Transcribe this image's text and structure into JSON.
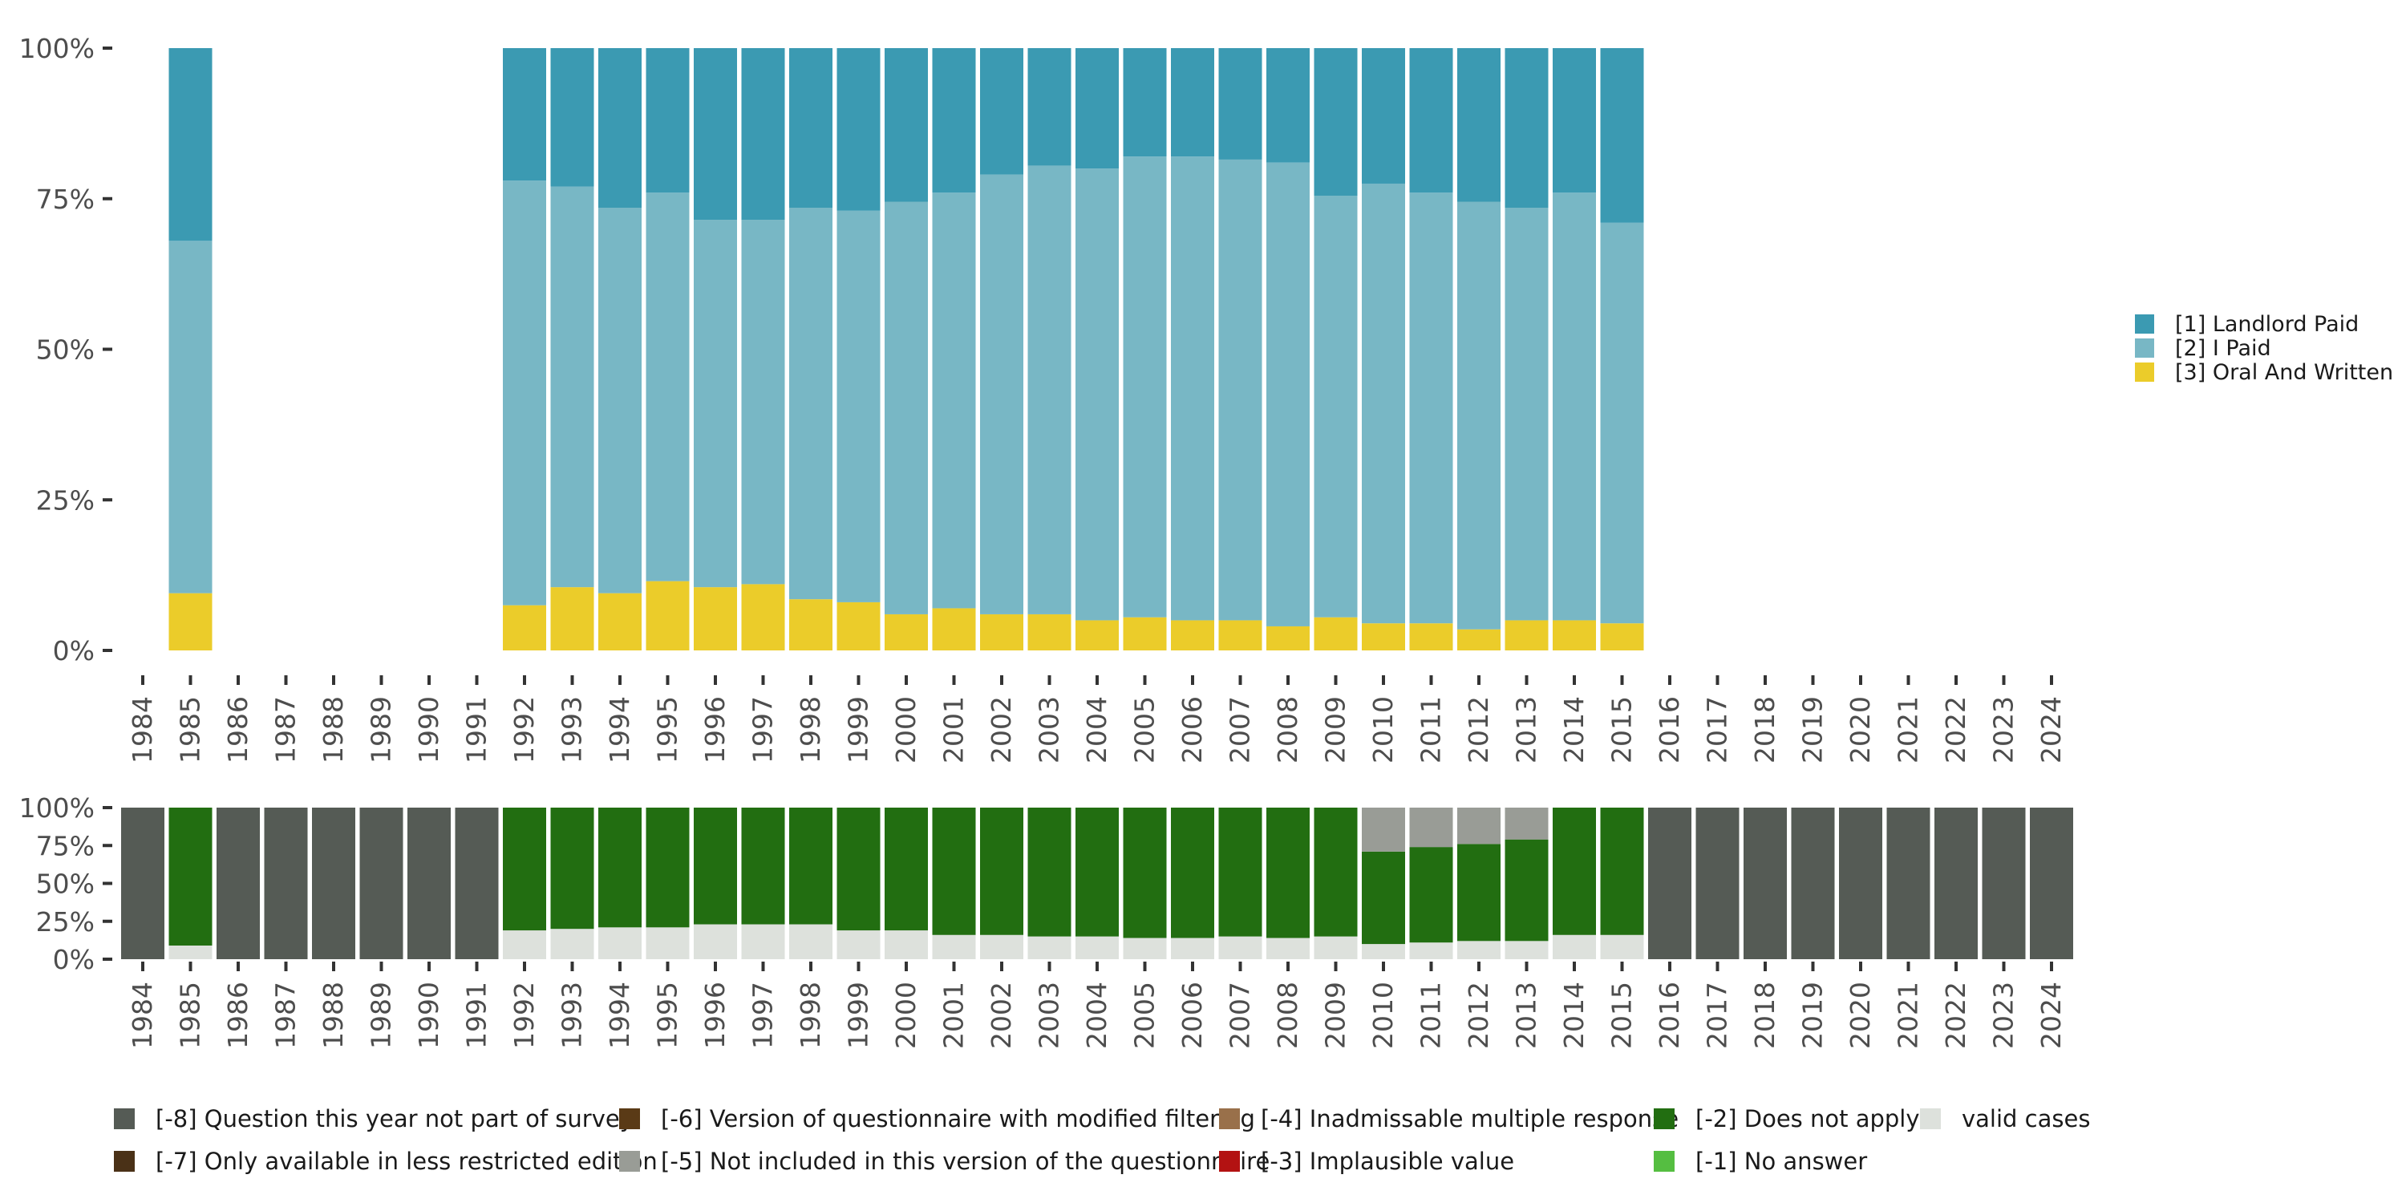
{
  "chart_data": [
    {
      "type": "bar",
      "stacked": true,
      "normalized": true,
      "title": "",
      "xlabel": "",
      "ylabel": "",
      "ylim": [
        0,
        100
      ],
      "yticks": [
        "0%",
        "25%",
        "50%",
        "75%",
        "100%"
      ],
      "categories": [
        "1984",
        "1985",
        "1986",
        "1987",
        "1988",
        "1989",
        "1990",
        "1991",
        "1992",
        "1993",
        "1994",
        "1995",
        "1996",
        "1997",
        "1998",
        "1999",
        "2000",
        "2001",
        "2002",
        "2003",
        "2004",
        "2005",
        "2006",
        "2007",
        "2008",
        "2009",
        "2010",
        "2011",
        "2012",
        "2013",
        "2014",
        "2015",
        "2016",
        "2017",
        "2018",
        "2019",
        "2020",
        "2021",
        "2022",
        "2023",
        "2024"
      ],
      "series": [
        {
          "name": "[3] Oral And Written",
          "color": "#ebcc2a",
          "values": [
            null,
            9.5,
            null,
            null,
            null,
            null,
            null,
            null,
            7.5,
            10.5,
            9.5,
            11.5,
            10.5,
            11,
            8.5,
            8,
            6,
            7,
            6,
            6,
            5,
            5.5,
            5,
            5,
            4,
            5.5,
            4.5,
            4.5,
            3.5,
            5,
            5,
            4.5,
            null,
            null,
            null,
            null,
            null,
            null,
            null,
            null,
            null
          ]
        },
        {
          "name": "[2] I Paid",
          "color": "#78b7c5",
          "values": [
            null,
            58.5,
            null,
            null,
            null,
            null,
            null,
            null,
            70.5,
            66.5,
            64,
            64.5,
            61,
            60.5,
            65,
            65,
            68.5,
            69,
            73,
            74.5,
            75,
            76.5,
            77,
            76.5,
            77,
            70,
            73,
            71.5,
            71,
            68.5,
            71,
            66.5,
            null,
            null,
            null,
            null,
            null,
            null,
            null,
            null,
            null
          ]
        },
        {
          "name": "[1] Landlord Paid",
          "color": "#3b9ab2",
          "values": [
            null,
            32,
            null,
            null,
            null,
            null,
            null,
            null,
            22,
            23,
            26.5,
            24,
            28.5,
            28.5,
            26.5,
            27,
            25.5,
            24,
            21,
            19.5,
            20,
            18,
            18,
            18.5,
            19,
            24.5,
            22.5,
            24,
            25.5,
            26.5,
            24,
            29,
            null,
            null,
            null,
            null,
            null,
            null,
            null,
            null,
            null
          ]
        }
      ],
      "legend": [
        "[1] Landlord Paid",
        "[2] I Paid",
        "[3] Oral And Written"
      ],
      "legend_position": "right"
    },
    {
      "type": "bar",
      "stacked": true,
      "normalized": true,
      "ylim": [
        0,
        100
      ],
      "yticks": [
        "0%",
        "25%",
        "50%",
        "75%",
        "100%"
      ],
      "categories": [
        "1984",
        "1985",
        "1986",
        "1987",
        "1988",
        "1989",
        "1990",
        "1991",
        "1992",
        "1993",
        "1994",
        "1995",
        "1996",
        "1997",
        "1998",
        "1999",
        "2000",
        "2001",
        "2002",
        "2003",
        "2004",
        "2005",
        "2006",
        "2007",
        "2008",
        "2009",
        "2010",
        "2011",
        "2012",
        "2013",
        "2014",
        "2015",
        "2016",
        "2017",
        "2018",
        "2019",
        "2020",
        "2021",
        "2022",
        "2023",
        "2024"
      ],
      "series": [
        {
          "name": "valid cases",
          "color": "#dde1dc",
          "values": [
            0,
            9,
            0,
            0,
            0,
            0,
            0,
            0,
            19,
            20,
            21,
            21,
            23,
            23,
            23,
            19,
            19,
            16,
            16,
            15,
            15,
            14,
            14,
            15,
            14,
            15,
            10,
            11,
            12,
            12,
            16,
            16,
            0,
            0,
            0,
            0,
            0,
            0,
            0,
            0,
            0
          ]
        },
        {
          "name": "[-2] Does not apply",
          "color": "#226e11",
          "values": [
            0,
            91,
            0,
            0,
            0,
            0,
            0,
            0,
            81,
            80,
            79,
            79,
            77,
            77,
            77,
            81,
            81,
            84,
            84,
            85,
            85,
            86,
            86,
            85,
            86,
            85,
            61,
            63,
            64,
            67,
            84,
            84,
            0,
            0,
            0,
            0,
            0,
            0,
            0,
            0,
            0
          ]
        },
        {
          "name": "[-5] Not included in this version of the questionnaire",
          "color": "#999c96",
          "values": [
            0,
            0,
            0,
            0,
            0,
            0,
            0,
            0,
            0,
            0,
            0,
            0,
            0,
            0,
            0,
            0,
            0,
            0,
            0,
            0,
            0,
            0,
            0,
            0,
            0,
            0,
            29,
            26,
            24,
            21,
            0,
            0,
            0,
            0,
            0,
            0,
            0,
            0,
            0,
            0,
            0
          ]
        },
        {
          "name": "[-8] Question this year not part of survey",
          "color": "#555b55",
          "values": [
            100,
            0,
            100,
            100,
            100,
            100,
            100,
            100,
            0,
            0,
            0,
            0,
            0,
            0,
            0,
            0,
            0,
            0,
            0,
            0,
            0,
            0,
            0,
            0,
            0,
            0,
            0,
            0,
            0,
            0,
            0,
            0,
            100,
            100,
            100,
            100,
            100,
            100,
            100,
            100,
            100
          ]
        }
      ],
      "legend": [
        {
          "label": "[-8] Question this year not part of survey",
          "color": "#555b55"
        },
        {
          "label": "[-7] Only available in less restricted edition",
          "color": "#4a3117"
        },
        {
          "label": "[-6] Version of questionnaire with modified filtering",
          "color": "#5a3a16"
        },
        {
          "label": "[-5] Not included in this version of the questionnaire",
          "color": "#999c96"
        },
        {
          "label": "[-4] Inadmissable multiple response",
          "color": "#99704a"
        },
        {
          "label": "[-3] Implausible value",
          "color": "#b31212"
        },
        {
          "label": "[-2] Does not apply",
          "color": "#226e11"
        },
        {
          "label": "[-1] No answer",
          "color": "#55be41"
        },
        {
          "label": "valid cases",
          "color": "#dde1dc"
        }
      ],
      "legend_position": "bottom"
    }
  ]
}
